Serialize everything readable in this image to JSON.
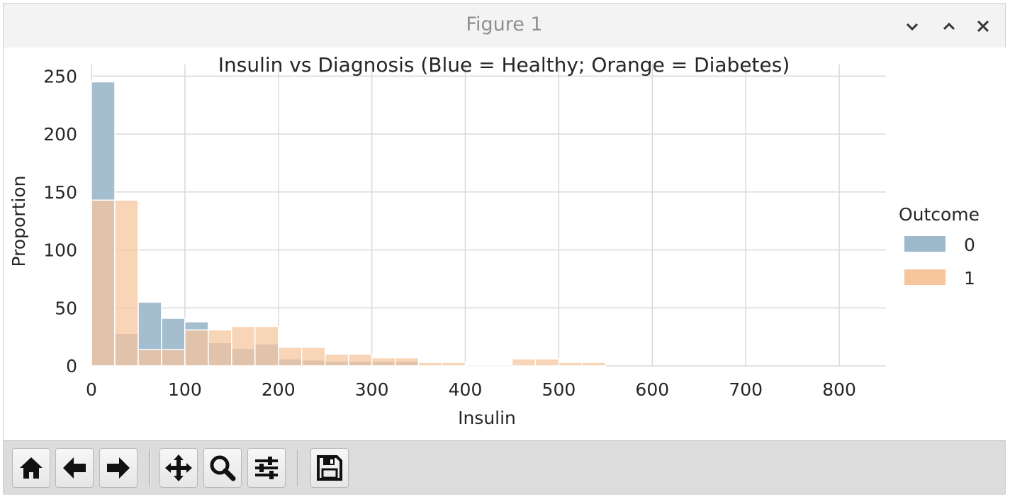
{
  "window": {
    "title": "Figure 1",
    "buttons": [
      {
        "name": "minimize",
        "icon": "chevron-down-icon"
      },
      {
        "name": "maximize",
        "icon": "chevron-up-icon"
      },
      {
        "name": "close",
        "icon": "close-icon"
      }
    ]
  },
  "toolbar": {
    "buttons": [
      {
        "name": "home",
        "icon": "home-icon"
      },
      {
        "name": "back",
        "icon": "arrow-left-icon"
      },
      {
        "name": "forward",
        "icon": "arrow-right-icon"
      },
      {
        "name": "pan",
        "icon": "move-icon"
      },
      {
        "name": "zoom",
        "icon": "magnifier-icon"
      },
      {
        "name": "configure-subplots",
        "icon": "sliders-icon"
      },
      {
        "name": "save",
        "icon": "floppy-disk-icon"
      }
    ]
  },
  "chart_data": {
    "type": "bar",
    "title": "Insulin vs Diagnosis (Blue = Healthy; Orange = Diabetes)",
    "xlabel": "Insulin",
    "ylabel": "Proportion",
    "xlim": [
      0,
      850
    ],
    "ylim": [
      0,
      260
    ],
    "xticks": [
      0,
      100,
      200,
      300,
      400,
      500,
      600,
      700,
      800
    ],
    "yticks": [
      0,
      50,
      100,
      150,
      200,
      250
    ],
    "grid": true,
    "legend": {
      "title": "Outcome",
      "placement": "right",
      "labels": [
        "0",
        "1"
      ]
    },
    "colors": {
      "series0": "#9fb9cc",
      "series1": "#f6c59b",
      "overlap": "#b89985"
    },
    "series": [
      {
        "name": "0",
        "bins": [
          [
            0,
            25,
            245
          ],
          [
            25,
            50,
            28
          ],
          [
            50,
            75,
            55
          ],
          [
            75,
            100,
            41
          ],
          [
            100,
            125,
            38
          ],
          [
            125,
            150,
            20
          ],
          [
            150,
            175,
            15
          ],
          [
            175,
            200,
            19
          ],
          [
            200,
            225,
            6
          ],
          [
            225,
            250,
            5
          ],
          [
            250,
            275,
            4
          ],
          [
            275,
            300,
            4
          ],
          [
            300,
            325,
            4
          ],
          [
            325,
            350,
            4
          ],
          [
            350,
            375,
            1
          ],
          [
            375,
            400,
            1
          ],
          [
            400,
            425,
            1
          ],
          [
            425,
            450,
            1
          ],
          [
            450,
            475,
            1
          ],
          [
            475,
            500,
            1
          ],
          [
            500,
            525,
            1
          ],
          [
            525,
            550,
            1
          ]
        ]
      },
      {
        "name": "1",
        "bins": [
          [
            0,
            25,
            143
          ],
          [
            25,
            50,
            143
          ],
          [
            50,
            75,
            14
          ],
          [
            75,
            100,
            14
          ],
          [
            100,
            125,
            31
          ],
          [
            125,
            150,
            31
          ],
          [
            150,
            175,
            34
          ],
          [
            175,
            200,
            34
          ],
          [
            200,
            225,
            16
          ],
          [
            225,
            250,
            16
          ],
          [
            250,
            275,
            10
          ],
          [
            275,
            300,
            10
          ],
          [
            300,
            325,
            7
          ],
          [
            325,
            350,
            7
          ],
          [
            350,
            375,
            3
          ],
          [
            375,
            400,
            3
          ],
          [
            400,
            425,
            0
          ],
          [
            425,
            450,
            0
          ],
          [
            450,
            475,
            6
          ],
          [
            475,
            500,
            6
          ],
          [
            500,
            525,
            3
          ],
          [
            525,
            550,
            3
          ]
        ]
      }
    ]
  }
}
